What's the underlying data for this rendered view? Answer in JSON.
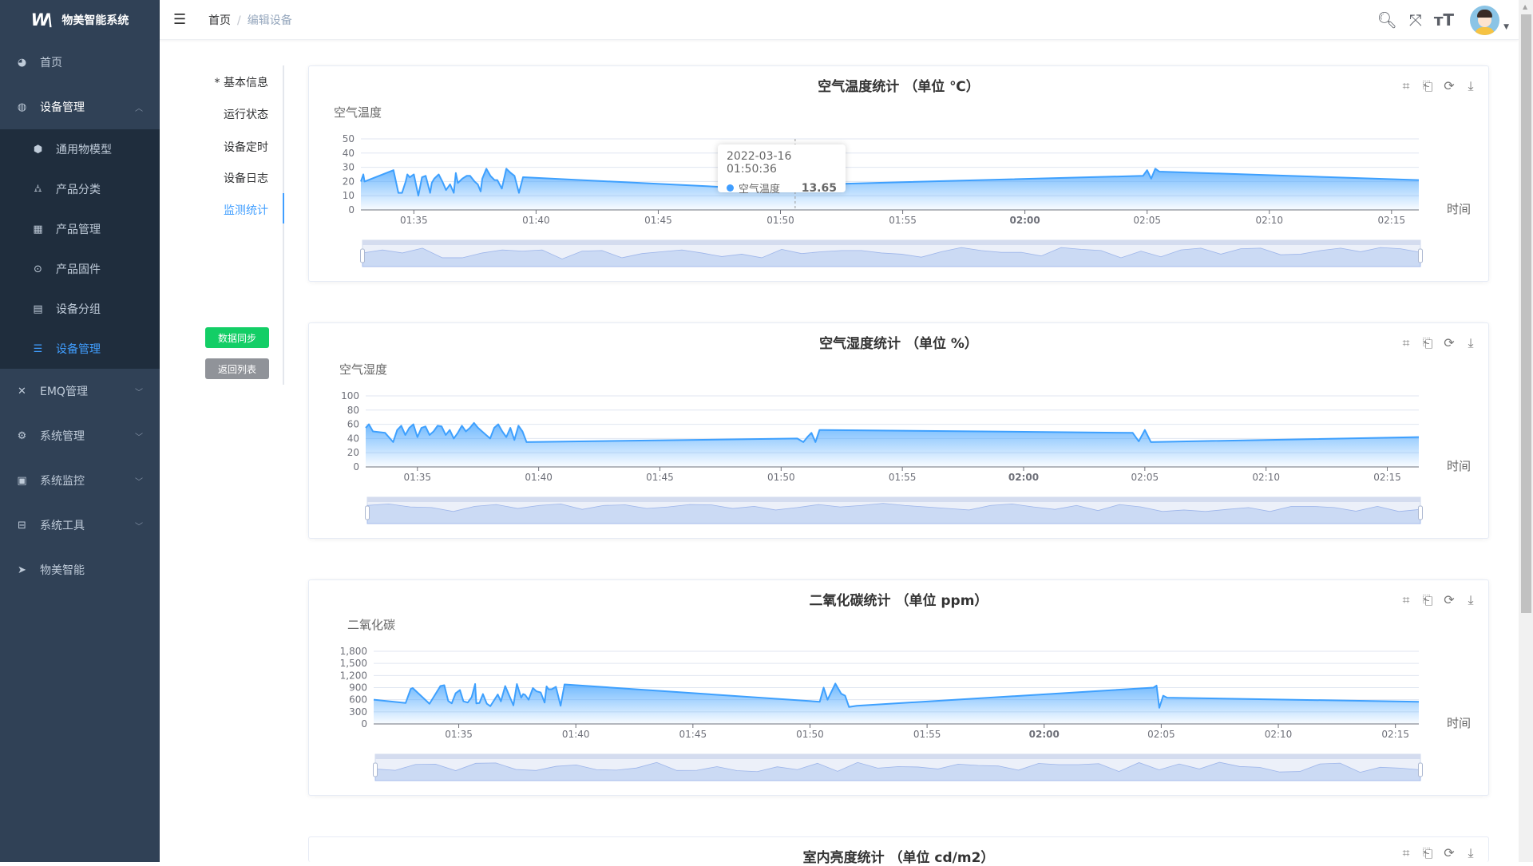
{
  "app": {
    "title": "物美智能系统"
  },
  "sidebar": {
    "items": [
      {
        "label": "首页",
        "icon": "dashboard-icon"
      },
      {
        "label": "设备管理",
        "icon": "device-icon",
        "expanded": true,
        "children": [
          {
            "label": "通用物模型",
            "icon": "cube-icon"
          },
          {
            "label": "产品分类",
            "icon": "tree-icon"
          },
          {
            "label": "产品管理",
            "icon": "grid-icon"
          },
          {
            "label": "产品固件",
            "icon": "chip-icon"
          },
          {
            "label": "设备分组",
            "icon": "group-icon"
          },
          {
            "label": "设备管理",
            "icon": "list-icon",
            "active": true
          }
        ]
      },
      {
        "label": "EMQ管理",
        "icon": "network-icon"
      },
      {
        "label": "系统管理",
        "icon": "gear-icon"
      },
      {
        "label": "系统监控",
        "icon": "monitor-icon"
      },
      {
        "label": "系统工具",
        "icon": "toolbox-icon"
      },
      {
        "label": "物美智能",
        "icon": "send-icon"
      }
    ]
  },
  "header": {
    "breadcrumb": [
      "首页",
      "编辑设备"
    ]
  },
  "tabs": [
    {
      "label": "* 基本信息"
    },
    {
      "label": "运行状态"
    },
    {
      "label": "设备定时"
    },
    {
      "label": "设备日志"
    },
    {
      "label": "监测统计",
      "active": true
    }
  ],
  "buttons": {
    "sync": "数据同步",
    "back": "返回列表"
  },
  "colors": {
    "primary": "#409eff",
    "sidebar": "#304156",
    "submenu": "#1f2d3d",
    "success": "#13ce66",
    "info": "#909399",
    "series": "#3ea0fe"
  },
  "tooltip": {
    "time": "2022-03-16 01:50:36",
    "series": "空气温度",
    "value": "13.65"
  },
  "chart_data": [
    {
      "type": "area",
      "title": "空气温度统计 （单位 ℃）",
      "ylabel": "空气温度",
      "xlabel": "时间",
      "series_name": "空气温度",
      "ylim": [
        0,
        50
      ],
      "yticks": [
        "0",
        "10",
        "20",
        "30",
        "40",
        "50"
      ],
      "xlim": [
        "01:32:50",
        "02:16:07"
      ],
      "xticks": [
        "01:35",
        "01:40",
        "01:45",
        "01:50",
        "01:55",
        "02:00",
        "02:05",
        "02:10",
        "02:15"
      ],
      "x": [
        "01:32:50",
        "01:32:56",
        "01:32:59",
        "01:34:10",
        "01:34:22",
        "01:34:31",
        "01:34:40",
        "01:34:44",
        "01:34:50",
        "01:35:00",
        "01:35:11",
        "01:35:20",
        "01:35:29",
        "01:35:40",
        "01:35:44",
        "01:35:50",
        "01:36:01",
        "01:36:10",
        "01:36:19",
        "01:36:29",
        "01:36:38",
        "01:36:43",
        "01:36:48",
        "01:36:59",
        "01:37:10",
        "01:37:18",
        "01:37:29",
        "01:37:37",
        "01:37:44",
        "01:37:48",
        "01:37:58",
        "01:38:08",
        "01:38:18",
        "01:38:25",
        "01:38:36",
        "01:38:47",
        "01:38:58",
        "01:39:07",
        "01:39:18",
        "01:39:28",
        "01:50:36",
        "01:50:45",
        "01:50:55",
        "01:51:03",
        "01:51:12",
        "01:51:22",
        "01:51:30",
        "01:51:40",
        "02:04:50",
        "02:05:00",
        "02:05:10",
        "02:05:20",
        "02:05:30",
        "02:16:07"
      ],
      "values": [
        20,
        25,
        20,
        28,
        12,
        12,
        20,
        25,
        23,
        25,
        10,
        23,
        24,
        12,
        19,
        22,
        25,
        20,
        14,
        18,
        12,
        26,
        19,
        22,
        24,
        24,
        20,
        18,
        13,
        22,
        29,
        24,
        21,
        21,
        15,
        29,
        26,
        24,
        12,
        23,
        13.65,
        25,
        28,
        18,
        27,
        28,
        17,
        18,
        24,
        28,
        22,
        29,
        27,
        21
      ]
    },
    {
      "type": "area",
      "title": "空气湿度统计 （单位 %）",
      "ylabel": "空气湿度",
      "xlabel": "时间",
      "series_name": "空气湿度",
      "ylim": [
        0,
        100
      ],
      "yticks": [
        "0",
        "20",
        "40",
        "60",
        "80",
        "100"
      ],
      "xlim": [
        "01:32:52",
        "02:16:18"
      ],
      "xticks": [
        "01:35",
        "01:40",
        "01:45",
        "01:50",
        "01:55",
        "02:00",
        "02:05",
        "02:10",
        "02:15"
      ],
      "x": [
        "01:32:52",
        "01:33:00",
        "01:33:10",
        "01:33:40",
        "01:34:00",
        "01:34:10",
        "01:34:20",
        "01:34:30",
        "01:34:40",
        "01:34:50",
        "01:35:00",
        "01:35:10",
        "01:35:20",
        "01:35:30",
        "01:35:40",
        "01:35:50",
        "01:36:00",
        "01:36:10",
        "01:36:20",
        "01:36:30",
        "01:36:40",
        "01:36:50",
        "01:37:00",
        "01:37:10",
        "01:37:20",
        "01:37:30",
        "01:37:40",
        "01:37:50",
        "01:38:00",
        "01:38:10",
        "01:38:20",
        "01:38:30",
        "01:38:40",
        "01:38:50",
        "01:39:00",
        "01:39:10",
        "01:39:20",
        "01:39:30",
        "01:50:40",
        "01:50:55",
        "01:51:05",
        "01:51:15",
        "01:51:25",
        "01:51:35",
        "01:51:45",
        "02:04:30",
        "02:04:45",
        "02:05:00",
        "02:05:15",
        "02:16:18"
      ],
      "values": [
        55,
        60,
        50,
        48,
        35,
        52,
        58,
        45,
        55,
        60,
        42,
        55,
        57,
        45,
        50,
        58,
        57,
        45,
        52,
        40,
        48,
        58,
        50,
        55,
        62,
        55,
        50,
        45,
        40,
        55,
        60,
        50,
        42,
        55,
        38,
        58,
        50,
        35,
        40,
        35,
        42,
        48,
        35,
        52,
        52,
        48,
        36,
        52,
        35,
        42
      ]
    },
    {
      "type": "area",
      "title": "二氧化碳统计 （单位 ppm）",
      "ylabel": "二氧化碳",
      "xlabel": "时间",
      "series_name": "二氧化碳",
      "ylim": [
        0,
        1800
      ],
      "yticks": [
        "0",
        "300",
        "600",
        "900",
        "1,200",
        "1,500",
        "1,800"
      ],
      "xlim": [
        "01:31:22",
        "02:16:00"
      ],
      "xticks": [
        "01:35",
        "01:40",
        "01:45",
        "01:50",
        "01:55",
        "02:00",
        "02:05",
        "02:10",
        "02:15"
      ],
      "x": [
        "01:31:22",
        "01:32:44",
        "01:32:57",
        "01:33:02",
        "01:33:45",
        "01:34:13",
        "01:34:23",
        "01:34:33",
        "01:34:42",
        "01:34:52",
        "01:35:03",
        "01:35:12",
        "01:35:23",
        "01:35:33",
        "01:35:42",
        "01:35:45",
        "01:35:53",
        "01:36:02",
        "01:36:12",
        "01:36:21",
        "01:36:40",
        "01:36:48",
        "01:36:59",
        "01:37:20",
        "01:37:29",
        "01:37:40",
        "01:37:45",
        "01:37:50",
        "01:37:59",
        "01:38:10",
        "01:38:19",
        "01:38:30",
        "01:38:40",
        "01:38:45",
        "01:38:50",
        "01:38:58",
        "01:39:09",
        "01:39:21",
        "01:39:31",
        "01:50:25",
        "01:50:35",
        "01:50:45",
        "01:51:05",
        "01:51:20",
        "01:51:30",
        "01:51:40",
        "01:52:00",
        "02:04:40",
        "02:04:48",
        "02:04:55",
        "02:05:05",
        "02:05:15",
        "02:16:00"
      ],
      "values": [
        600,
        520,
        870,
        890,
        500,
        940,
        960,
        570,
        510,
        760,
        840,
        560,
        530,
        660,
        990,
        510,
        520,
        740,
        500,
        440,
        730,
        560,
        940,
        460,
        990,
        650,
        740,
        720,
        600,
        890,
        810,
        780,
        530,
        930,
        860,
        860,
        920,
        450,
        980,
        550,
        900,
        600,
        1000,
        750,
        700,
        420,
        450,
        900,
        950,
        400,
        700,
        650,
        550
      ]
    },
    {
      "type": "area",
      "title": "室内亮度统计 （单位 cd/m2）"
    }
  ]
}
